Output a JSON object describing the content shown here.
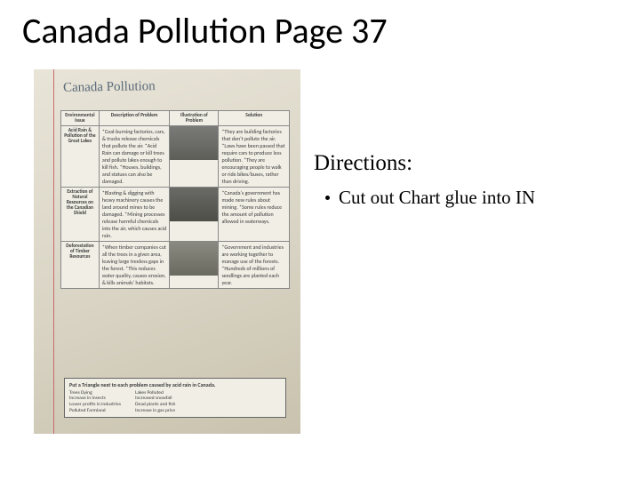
{
  "slide": {
    "title": "Canada Pollution Page 37",
    "title_fontsize": 40,
    "title_color": "#000000",
    "background_color": "#ffffff"
  },
  "directions": {
    "heading": "Directions:",
    "heading_fontsize": 25,
    "heading_font": "Garamond",
    "bullets": [
      "Cut out Chart glue into IN"
    ],
    "bullet_fontsize": 21
  },
  "notebook_photo": {
    "handwritten_title": "Canada Pollution",
    "handwritten_color": "#5a6a7a",
    "paper_gradient": [
      "#e8e4d8",
      "#d9d4c4",
      "#c9c2ae"
    ],
    "margin_line_color": "#c96a6a",
    "chart": {
      "type": "table",
      "border_color": "#888888",
      "background_color": "#f0eee5",
      "text_color": "#3a3a3a",
      "header_fontsize": 5.5,
      "cell_fontsize": 6,
      "columns": [
        "Environmental Issue",
        "Description of Problem",
        "Illustration of Problem",
        "Solution"
      ],
      "rows": [
        {
          "issue": "Acid Rain & Pollution of the Great Lakes",
          "description": "*Coal-burning factories, cars, & trucks release chemicals that pollute the air. *Acid Rain can damage or kill trees and pollute lakes enough to kill fish. *Houses, buildings, and statues can also be damaged.",
          "illustration_gradient": [
            "#7a7a78",
            "#5e5e58"
          ],
          "solution": "*They are building factories that don't pollute the air. *Laws have been passed that require cars to produce less pollution. *They are encouraging people to walk or ride bikes/buses, rather than driving."
        },
        {
          "issue": "Extraction of Natural Resources on the Canadian Shield",
          "description": "*Blasting & digging with heavy machinery causes the land around mines to be damaged. *Mining processes release harmful chemicals into the air, which causes acid rain.",
          "illustration_gradient": [
            "#6a6a66",
            "#4e4e48"
          ],
          "solution": "*Canada's government has made new rules about mining. *Some rules reduce the amount of pollution allowed in waterways."
        },
        {
          "issue": "Deforestation of Timber Resources",
          "description": "*When timber companies cut all the trees in a given area, leaving large treeless gaps in the forest. *This reduces water quality, causes erosion, & kills animals' habitats.",
          "illustration_gradient": [
            "#8a8a82",
            "#6a6a60"
          ],
          "solution": "*Government and industries are working together to manage use of the forests. *Hundreds of millions of seedlings are planted each year."
        }
      ]
    },
    "footer_box": {
      "title": "Put a Triangle next to each problem caused by acid rain in Canada.",
      "left_items": [
        "Trees Dying",
        "Increase in Insects",
        "Lower profits in industries",
        "Polluted Farmland"
      ],
      "right_items": [
        "Lakes Polluted",
        "Increased snowfall",
        "Dead plants and fish",
        "Increase in gas price"
      ]
    }
  }
}
